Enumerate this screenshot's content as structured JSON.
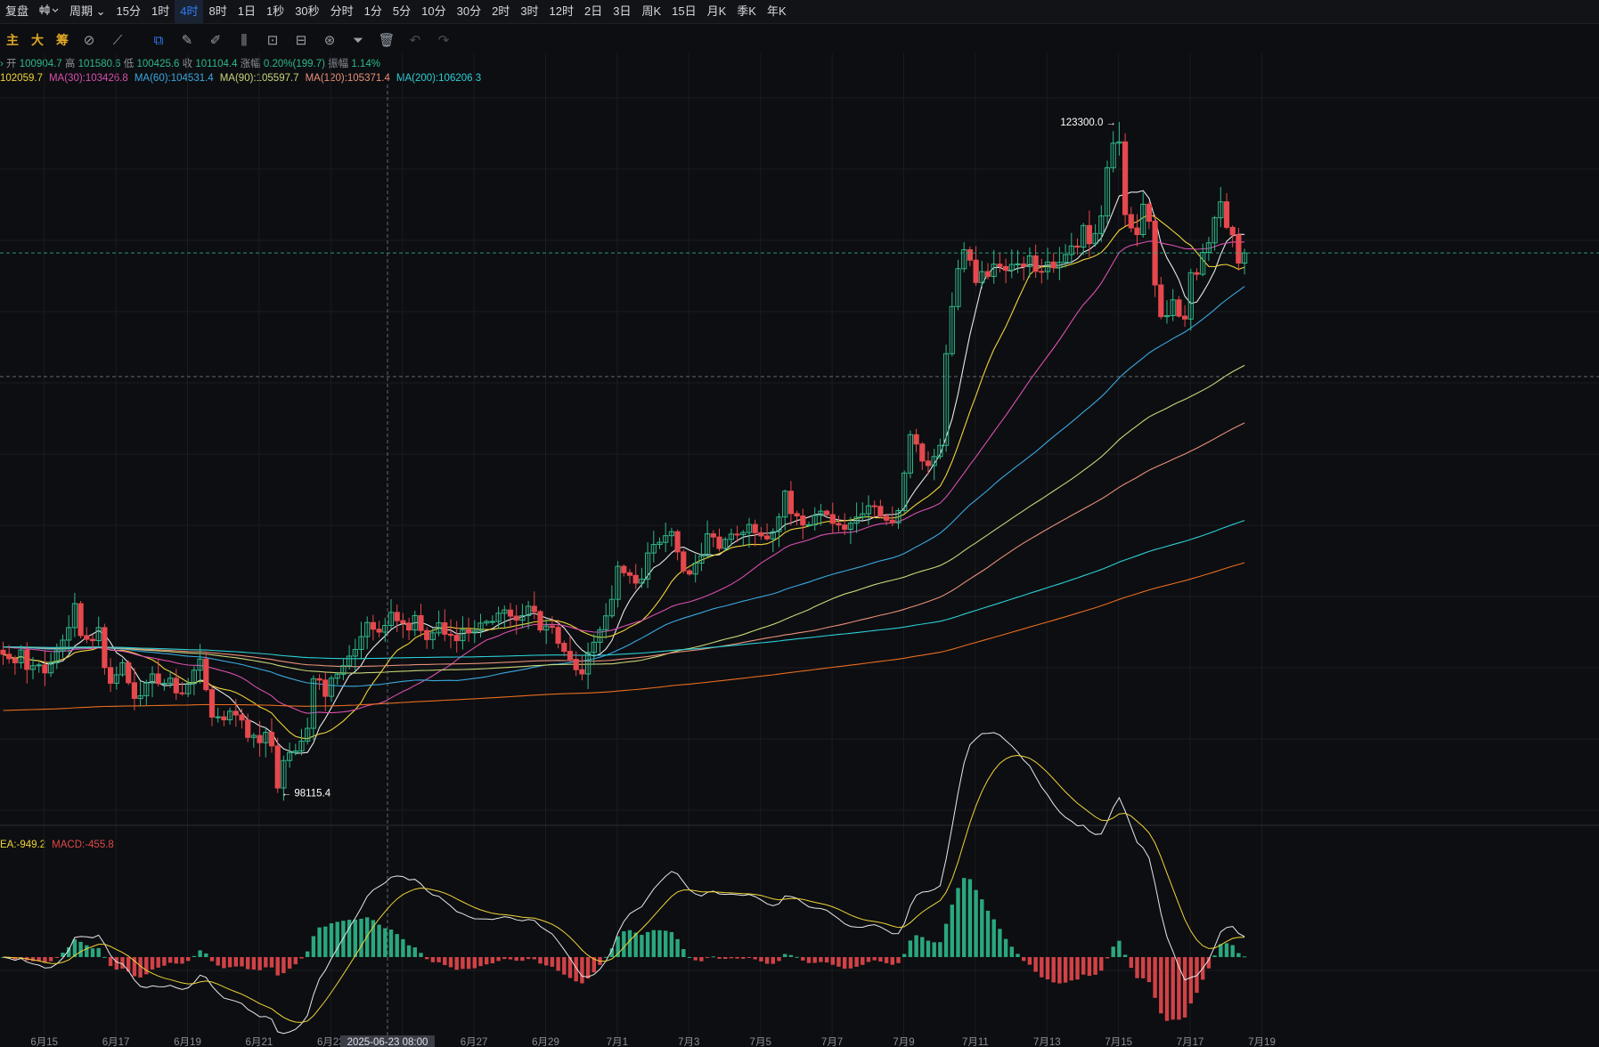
{
  "toolbar": {
    "replay_label": "复盘",
    "chart_style_icon": "candlestick-icon",
    "period_label": "周期",
    "timeframes": [
      "15分",
      "1时",
      "4时",
      "8时",
      "1日",
      "1秒",
      "30秒",
      "分时",
      "1分",
      "5分",
      "10分",
      "30分",
      "2时",
      "3时",
      "12时",
      "2日",
      "3日",
      "周K",
      "15日",
      "月K",
      "季K",
      "年K"
    ],
    "active_timeframe": "4时"
  },
  "toolbar2": {
    "main_label": "主",
    "big_label": "大",
    "chips_label": "筹",
    "tools": [
      "indicator-icon",
      "draw-icon",
      "rectangle-select-icon",
      "pencil-icon",
      "brush-icon",
      "candle-compare-icon",
      "lock-icon",
      "edit-icon",
      "magnet-icon",
      "filter-icon",
      "trash-icon",
      "undo-icon",
      "redo-icon"
    ]
  },
  "ohlc_info": {
    "open_label": "开",
    "open": "100904.7",
    "high_label": "高",
    "high": "101580.6",
    "low_label": "低",
    "low": "100425.6",
    "close_label": "收",
    "close": "101104.4",
    "change_label": "涨幅",
    "change": "0.20%(199.7)",
    "amplitude_label": "振幅",
    "amplitude": "1.14%"
  },
  "ma_info": [
    {
      "text": "102059.7",
      "color": "#f0d43a"
    },
    {
      "text": "MA(30):103426.8",
      "color": "#d94fb0"
    },
    {
      "text": "MA(60):104531.4",
      "color": "#3aa8e0"
    },
    {
      "text": "MA(90):105597.7",
      "color": "#c8d67a"
    },
    {
      "text": "MA(120):105371.4",
      "color": "#e8907a"
    },
    {
      "text": "MA(200):106206.3",
      "color": "#2ad0d6"
    }
  ],
  "macd_info": [
    {
      "text": "EA:-949.2",
      "color": "#f0d43a"
    },
    {
      "text": "MACD:-455.8",
      "color": "#e04848"
    }
  ],
  "annotations": {
    "high_label": "123300.0",
    "low_label": "98115.4",
    "crosshair_time": "2025-06-23 08:00"
  },
  "colors": {
    "up": "#2eb88a",
    "down": "#e5484d",
    "background": "#0d0e11",
    "accent": "#2f7cf6"
  },
  "chart_data": {
    "type": "candlestick",
    "ylim": [
      97200,
      124700
    ],
    "x_ticks": [
      "6月15",
      "6月17",
      "6月19",
      "6月21",
      "6月23",
      "6月25",
      "6月27",
      "6月29",
      "7月1",
      "7月3",
      "7月5",
      "7月7",
      "7月9",
      "7月11",
      "7月13",
      "7月15",
      "7月17",
      "7月19"
    ],
    "bars_per_day": 6,
    "first_bar": "2025-06-14 08:00",
    "high": 123300.0,
    "low": 98115.4,
    "closes": [
      103320,
      103150,
      103000,
      103480,
      102750,
      102890,
      102920,
      102620,
      103000,
      103450,
      103850,
      104320,
      105220,
      104020,
      103880,
      103830,
      104320,
      102820,
      102230,
      102550,
      103000,
      102250,
      101660,
      101760,
      102240,
      102580,
      102220,
      102230,
      102420,
      101870,
      101840,
      102220,
      102720,
      103140,
      101990,
      100960,
      100970,
      100860,
      101180,
      101040,
      100850,
      100200,
      100270,
      100000,
      100390,
      99880,
      98300,
      99330,
      99630,
      99690,
      100060,
      100540,
      102400,
      102350,
      101740,
      102420,
      102570,
      102890,
      103250,
      103500,
      103980,
      104510,
      104260,
      104150,
      104400,
      104890,
      104580,
      104490,
      104230,
      104770,
      104210,
      103870,
      104120,
      104500,
      104070,
      104030,
      103830,
      104240,
      104120,
      104210,
      104490,
      104550,
      104550,
      104860,
      104980,
      104750,
      104600,
      104770,
      105120,
      104920,
      104230,
      104380,
      104330,
      103730,
      103430,
      103130,
      102740,
      102580,
      103390,
      103770,
      104240,
      104760,
      105380,
      106620,
      106380,
      106280,
      105990,
      106140,
      107120,
      107440,
      107520,
      107770,
      107920,
      107160,
      106450,
      106330,
      106740,
      107010,
      107840,
      107720,
      107290,
      107630,
      107830,
      107810,
      107890,
      108190,
      107880,
      107760,
      107650,
      107920,
      108470,
      109440,
      108600,
      108510,
      108170,
      108180,
      108530,
      108690,
      108560,
      108230,
      108170,
      108010,
      108240,
      108470,
      108590,
      108890,
      108870,
      108500,
      108350,
      108250,
      108710,
      110120,
      111560,
      111210,
      110570,
      110400,
      110740,
      111160,
      114600,
      116370,
      117790,
      118500,
      118110,
      117270,
      117680,
      117500,
      117960,
      117870,
      117730,
      117950,
      117970,
      117870,
      118270,
      117690,
      117680,
      118040,
      117830,
      118030,
      118320,
      118640,
      118600,
      119410,
      118730,
      119110,
      119770,
      121580,
      122500,
      122550,
      119820,
      119320,
      119070,
      120210,
      119570,
      117180,
      115990,
      116030,
      116620,
      116010,
      115900,
      117640,
      117580,
      118400,
      118760,
      119700,
      120300,
      119340,
      119060,
      118000,
      118380
    ],
    "ma_series_names": [
      "MA(30)",
      "MA(60)",
      "MA(90)",
      "MA(120)",
      "MA(200)"
    ],
    "macd": {
      "labels": [
        "EA",
        "MACD"
      ],
      "ylim": [
        -900,
        1200
      ]
    }
  }
}
